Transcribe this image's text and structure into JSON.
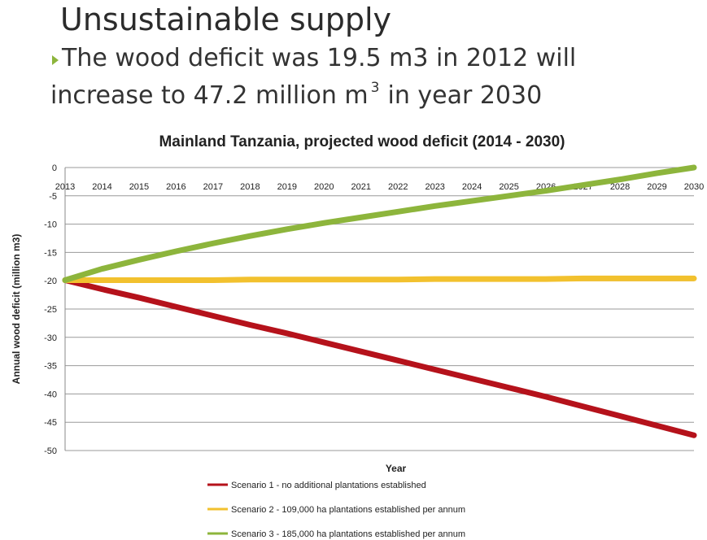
{
  "slide": {
    "title": "Unsustainable supply",
    "bullet_text_1": "The wood deficit was 19.5 m3 in 2012 will",
    "bullet_text_2a": "increase to 47.2 million m",
    "bullet_superscript": "3",
    "bullet_text_2b": "in year 2030",
    "bullet_color": "#8db53c"
  },
  "chart_data": {
    "type": "line",
    "title": "Mainland Tanzania, projected wood deficit (2014 - 2030)",
    "xlabel": "Year",
    "ylabel": "Annual wood deficit (million m3)",
    "x": [
      2013,
      2014,
      2015,
      2016,
      2017,
      2018,
      2019,
      2020,
      2021,
      2022,
      2023,
      2024,
      2025,
      2026,
      2027,
      2028,
      2029,
      2030
    ],
    "x_tick_labels": [
      "2013",
      "2014",
      "2015",
      "2016",
      "2017",
      "2018",
      "2019",
      "2020",
      "2021",
      "2022",
      "2023",
      "2024",
      "2025",
      "2026",
      "2027",
      "2028",
      "2029",
      "2030"
    ],
    "y_tick_values": [
      0,
      -5,
      -10,
      -15,
      -20,
      -25,
      -30,
      -35,
      -40,
      -45,
      -50
    ],
    "y_tick_labels": [
      "0",
      "-5",
      "-10",
      "-15",
      "-20",
      "-25",
      "-30",
      "-35",
      "-40",
      "-45",
      "-50"
    ],
    "ylim": [
      -50,
      0
    ],
    "xlim": [
      2013,
      2030
    ],
    "grid": true,
    "legend_position": "bottom",
    "series": [
      {
        "name": "Scenario 1 - no additional plantations established",
        "color": "#b5121b",
        "values": [
          -19.9,
          -21.5,
          -23.0,
          -24.6,
          -26.2,
          -27.8,
          -29.3,
          -30.9,
          -32.5,
          -34.1,
          -35.7,
          -37.3,
          -38.9,
          -40.5,
          -42.2,
          -43.9,
          -45.6,
          -47.3
        ]
      },
      {
        "name": "Scenario 2 - 109,000 ha plantations established per annum",
        "color": "#f2c12e",
        "values": [
          -19.9,
          -19.9,
          -19.9,
          -19.9,
          -19.9,
          -19.8,
          -19.8,
          -19.8,
          -19.8,
          -19.8,
          -19.7,
          -19.7,
          -19.7,
          -19.7,
          -19.6,
          -19.6,
          -19.6,
          -19.6
        ]
      },
      {
        "name": "Scenario 3 - 185,000 ha plantations established per annum",
        "color": "#8db53c",
        "values": [
          -19.9,
          -17.9,
          -16.3,
          -14.8,
          -13.4,
          -12.1,
          -10.9,
          -9.8,
          -8.8,
          -7.8,
          -6.8,
          -5.9,
          -5.0,
          -4.1,
          -3.1,
          -2.1,
          -1.0,
          0.0
        ]
      }
    ]
  }
}
